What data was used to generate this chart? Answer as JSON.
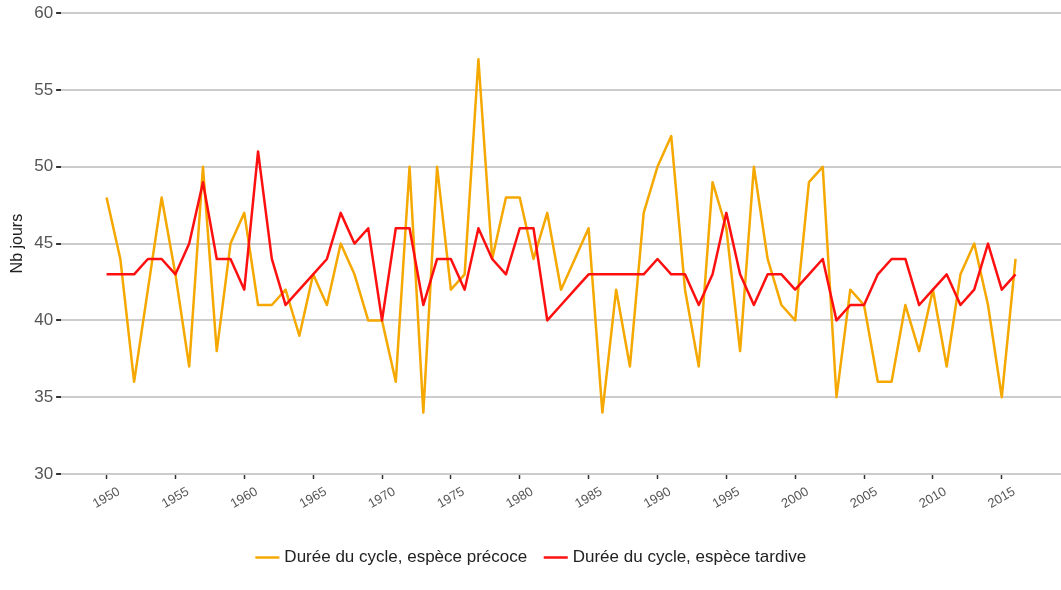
{
  "chart_data": {
    "type": "line",
    "ylabel": "Nb jours",
    "x": [
      1950,
      1951,
      1952,
      1953,
      1954,
      1955,
      1956,
      1957,
      1958,
      1959,
      1960,
      1961,
      1962,
      1963,
      1964,
      1965,
      1966,
      1967,
      1968,
      1969,
      1970,
      1971,
      1972,
      1973,
      1974,
      1975,
      1976,
      1977,
      1978,
      1979,
      1980,
      1981,
      1982,
      1983,
      1984,
      1985,
      1986,
      1987,
      1988,
      1989,
      1990,
      1991,
      1992,
      1993,
      1994,
      1995,
      1996,
      1997,
      1998,
      1999,
      2000,
      2001,
      2002,
      2003,
      2004,
      2005,
      2006,
      2007,
      2008,
      2009,
      2010,
      2011,
      2012,
      2013,
      2014,
      2015,
      2016
    ],
    "series": [
      {
        "name": "Durée du cycle, espèce précoce",
        "color": "#f5a800",
        "values": [
          48,
          44,
          36,
          42,
          48,
          43,
          37,
          50,
          38,
          45,
          47,
          41,
          41,
          42,
          39,
          43,
          41,
          45,
          43,
          40,
          40,
          36,
          50,
          34,
          50,
          42,
          43,
          57,
          44,
          48,
          48,
          44,
          47,
          42,
          44,
          46,
          34,
          42,
          37,
          47,
          50,
          52,
          42,
          37,
          49,
          46,
          38,
          50,
          44,
          41,
          40,
          49,
          50,
          35,
          42,
          41,
          36,
          36,
          41,
          38,
          42,
          37,
          43,
          45,
          41,
          35,
          44
        ]
      },
      {
        "name": "Durée du cycle, espèce tardive",
        "color": "#ff1010",
        "values": [
          43,
          43,
          43,
          44,
          44,
          43,
          45,
          49,
          44,
          44,
          42,
          51,
          44,
          41,
          42,
          43,
          44,
          47,
          45,
          46,
          40,
          46,
          46,
          41,
          44,
          44,
          42,
          46,
          44,
          43,
          46,
          46,
          40,
          41,
          42,
          43,
          43,
          43,
          43,
          43,
          44,
          43,
          43,
          41,
          43,
          47,
          43,
          41,
          43,
          43,
          42,
          43,
          44,
          40,
          41,
          41,
          43,
          44,
          44,
          41,
          42,
          43,
          41,
          42,
          45,
          42,
          43
        ]
      }
    ],
    "xlim": [
      1946.7,
      2019.3
    ],
    "xticks": [
      1950,
      1955,
      1960,
      1965,
      1970,
      1975,
      1980,
      1985,
      1990,
      1995,
      2000,
      2005,
      2010,
      2015
    ],
    "ylim": [
      30,
      60
    ],
    "yticks": [
      30,
      35,
      40,
      45,
      50,
      55,
      60
    ],
    "grid": "y",
    "legend": "bottom",
    "marker": "none",
    "line_style": "solid"
  }
}
